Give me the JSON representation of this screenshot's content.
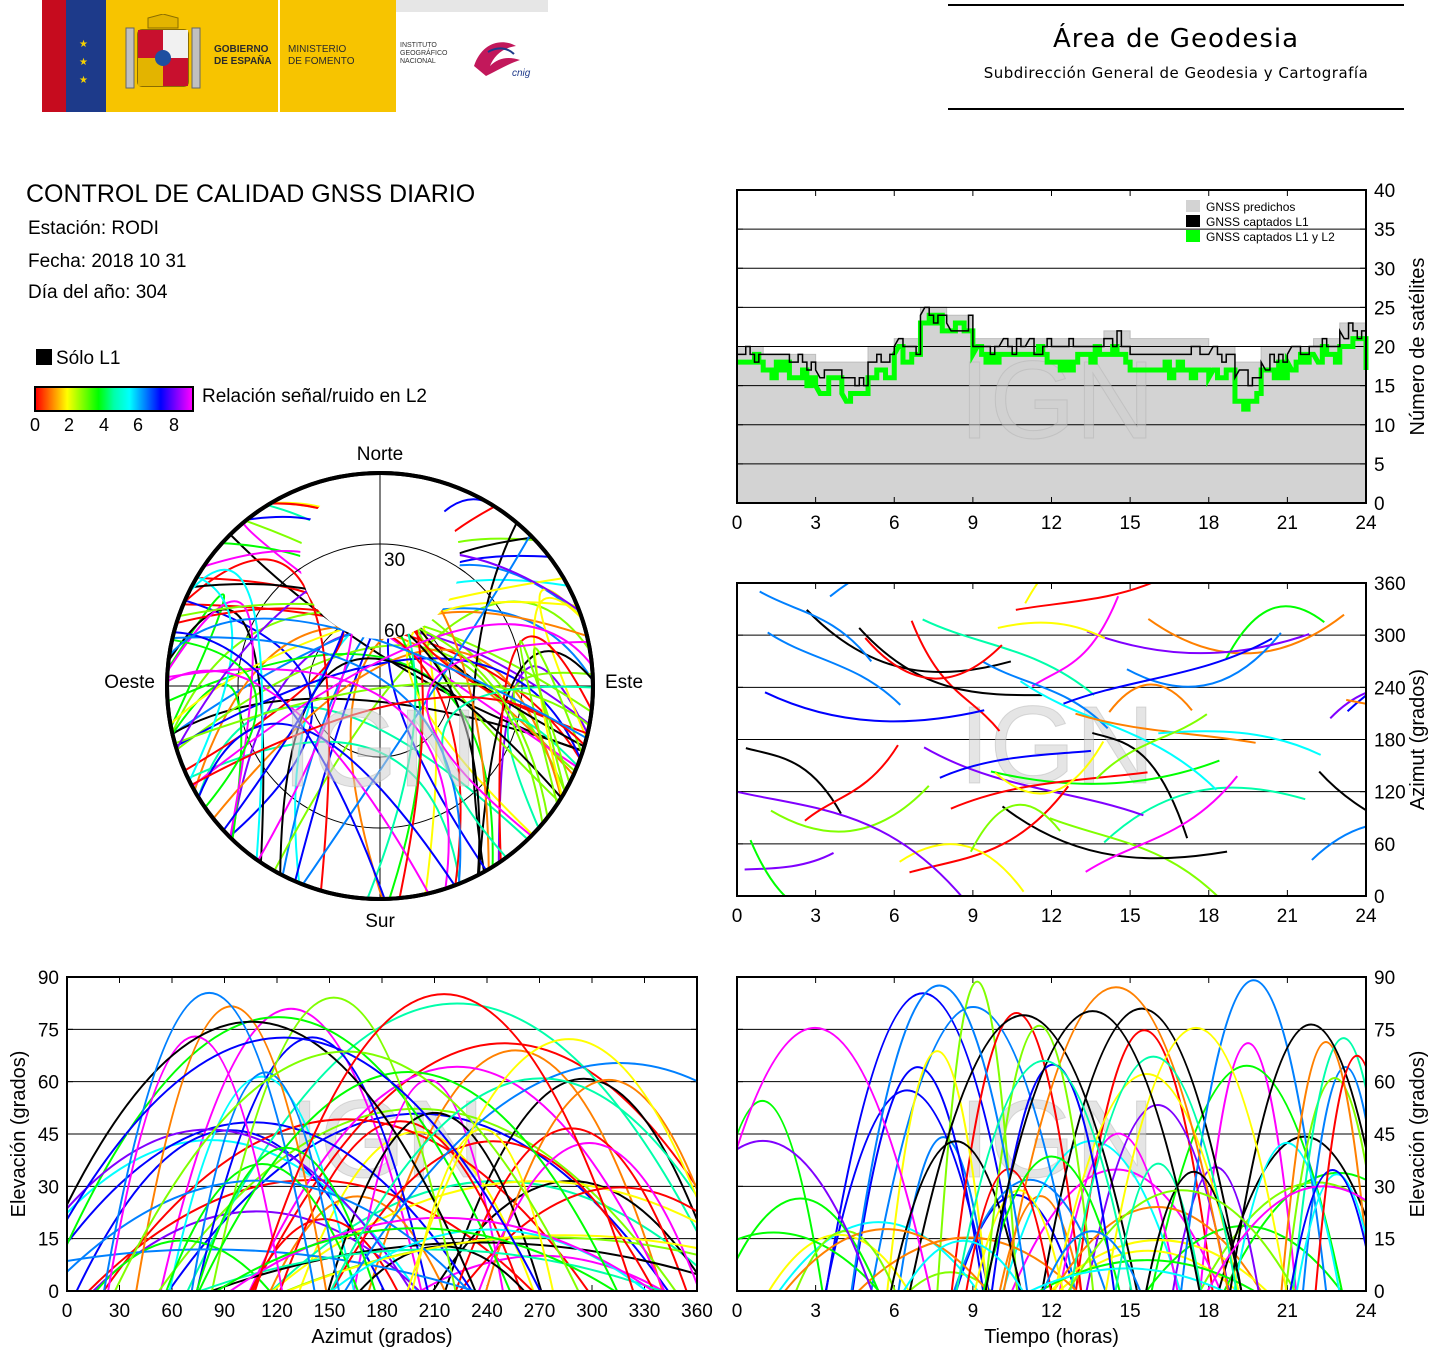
{
  "header": {
    "gov_line1": "GOBIERNO",
    "gov_line2": "DE ESPAÑA",
    "min_line1": "MINISTERIO",
    "min_line2": "DE FOMENTO",
    "inst_line1": "INSTITUTO",
    "inst_line2": "GEOGRÁFICO",
    "inst_line3": "NACIONAL",
    "cnig_logo": "cnig",
    "area_title": "Área de Geodesia",
    "area_subtitle": "Subdirección General de Geodesia y Cartografía"
  },
  "report": {
    "title": "CONTROL DE CALIDAD GNSS DIARIO",
    "station": "Estación: RODI",
    "date": "Fecha: 2018 10 31",
    "doy": "Día del año: 304",
    "legend_l1": "Sólo L1",
    "snr_label": "Relación señal/ruido en L2",
    "snr_ticks": [
      "0",
      "2",
      "4",
      "6",
      "8"
    ],
    "snr_colors": [
      "#ff0000",
      "#ff8000",
      "#ffff00",
      "#80ff00",
      "#00ff00",
      "#00ffaa",
      "#00ffff",
      "#0080ff",
      "#0000ff",
      "#8000ff",
      "#ff00ff"
    ]
  },
  "watermark": "IGN",
  "chart_data": [
    {
      "type": "line",
      "id": "satellite-count",
      "ylabel": "Número de satélites",
      "xlim": [
        0,
        24
      ],
      "ylim": [
        0,
        40
      ],
      "xticks": [
        0,
        3,
        6,
        9,
        12,
        15,
        18,
        21,
        24
      ],
      "yticks": [
        0,
        5,
        10,
        15,
        20,
        25,
        30,
        35,
        40
      ],
      "grid": "horizontal",
      "legend_position": "top-right",
      "series": [
        {
          "name": "GNSS predichos",
          "color": "#d3d3d3",
          "x": [
            0,
            1,
            2,
            3,
            4,
            5,
            6,
            7,
            8,
            9,
            10,
            11,
            12,
            13,
            14,
            15,
            16,
            17,
            18,
            19,
            20,
            21,
            22,
            23,
            24
          ],
          "values": [
            20,
            19,
            19,
            18,
            18,
            20,
            21,
            25,
            24,
            21,
            21,
            21,
            21,
            21,
            22,
            21,
            21,
            21,
            20,
            18,
            20,
            20,
            21,
            23,
            19
          ]
        },
        {
          "name": "GNSS captados L1",
          "color": "#000000",
          "x": [
            0,
            1,
            2,
            3,
            4,
            5,
            6,
            7,
            8,
            9,
            10,
            11,
            12,
            13,
            14,
            15,
            16,
            17,
            18,
            19,
            20,
            21,
            22,
            23,
            24
          ],
          "values": [
            19,
            19,
            18,
            17,
            16,
            18,
            20,
            24,
            23,
            20,
            20,
            20,
            20,
            20,
            21,
            19,
            19,
            19,
            19,
            16,
            18,
            19,
            20,
            22,
            18
          ]
        },
        {
          "name": "GNSS captados L1 y L2",
          "color": "#00ff00",
          "x": [
            0,
            1,
            2,
            3,
            4,
            5,
            6,
            7,
            8,
            9,
            10,
            11,
            12,
            13,
            14,
            15,
            16,
            17,
            18,
            19,
            20,
            21,
            22,
            23,
            24
          ],
          "values": [
            18,
            17,
            16,
            15,
            14,
            16,
            19,
            23,
            22,
            19,
            19,
            19,
            18,
            19,
            19,
            17,
            17,
            17,
            16,
            13,
            17,
            18,
            19,
            20,
            17
          ]
        }
      ]
    },
    {
      "type": "scatter",
      "id": "skyplot",
      "labels": {
        "north": "Norte",
        "south": "Sur",
        "west": "Oeste",
        "east": "Este"
      },
      "elevation_rings": [
        "30",
        "60"
      ]
    },
    {
      "type": "scatter",
      "id": "azimuth-vs-time",
      "ylabel": "Azimut (grados)",
      "xlim": [
        0,
        24
      ],
      "ylim": [
        0,
        360
      ],
      "xticks": [
        0,
        3,
        6,
        9,
        12,
        15,
        18,
        21,
        24
      ],
      "yticks": [
        0,
        60,
        120,
        180,
        240,
        300,
        360
      ],
      "grid": "horizontal"
    },
    {
      "type": "scatter",
      "id": "elevation-vs-azimuth",
      "xlabel": "Azimut (grados)",
      "ylabel": "Elevación (grados)",
      "xlim": [
        0,
        360
      ],
      "ylim": [
        0,
        90
      ],
      "xticks": [
        0,
        30,
        60,
        90,
        120,
        150,
        180,
        210,
        240,
        270,
        300,
        330,
        360
      ],
      "yticks": [
        0,
        15,
        30,
        45,
        60,
        75,
        90
      ],
      "grid": "horizontal"
    },
    {
      "type": "scatter",
      "id": "elevation-vs-time",
      "xlabel": "Tiempo (horas)",
      "ylabel": "Elevación (grados)",
      "xlim": [
        0,
        24
      ],
      "ylim": [
        0,
        90
      ],
      "xticks": [
        0,
        3,
        6,
        9,
        12,
        15,
        18,
        21,
        24
      ],
      "yticks": [
        0,
        15,
        30,
        45,
        60,
        75,
        90
      ],
      "grid": "horizontal"
    }
  ]
}
